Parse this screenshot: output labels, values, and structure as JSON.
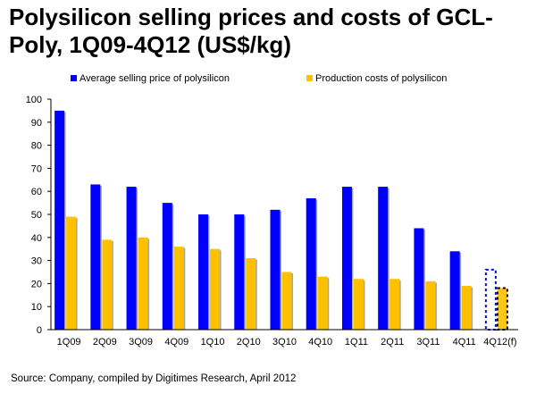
{
  "chart_data": {
    "type": "bar",
    "title": "Polysilicon selling prices and costs of GCL-Poly, 1Q09-4Q12 (US$/kg)",
    "categories": [
      "1Q09",
      "2Q09",
      "3Q09",
      "4Q09",
      "1Q10",
      "2Q10",
      "3Q10",
      "4Q10",
      "1Q11",
      "2Q11",
      "3Q11",
      "4Q11",
      "4Q12(f)"
    ],
    "series": [
      {
        "name": "Average selling price of polysilicon",
        "color": "#0000ff",
        "values": [
          95,
          63,
          62,
          55,
          50,
          50,
          52,
          57,
          62,
          62,
          44,
          34,
          26
        ],
        "forecast_index": 12
      },
      {
        "name": "Production costs of polysilicon",
        "color": "#ffc000",
        "values": [
          49,
          39,
          40,
          36,
          35,
          31,
          25,
          23,
          22,
          22,
          21,
          19,
          18
        ],
        "forecast_index": 12
      }
    ],
    "ylim": [
      0,
      100
    ],
    "yticks": [
      0,
      10,
      20,
      30,
      40,
      50,
      60,
      70,
      80,
      90,
      100
    ],
    "grid": false,
    "legend": "top",
    "xlabel": "",
    "ylabel": ""
  },
  "source": "Source: Company, compiled by Digitimes Research, April 2012"
}
